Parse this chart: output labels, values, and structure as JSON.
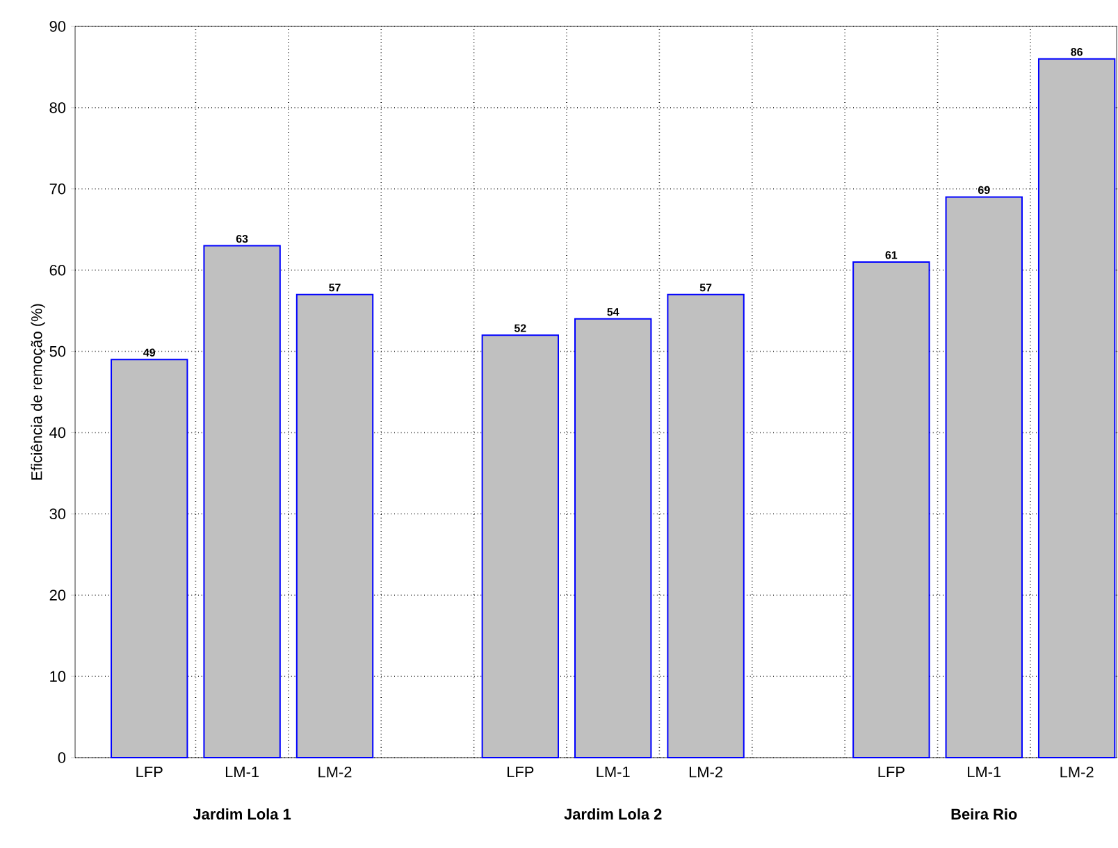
{
  "chart_data": {
    "type": "bar",
    "ylabel": "Eficiência de remoção (%)",
    "categories": [
      "LFP",
      "LM-1",
      "LM-2",
      null,
      "LFP",
      "LM-1",
      "LM-2",
      null,
      "LFP",
      "LM-1",
      "LM-2"
    ],
    "values": [
      49,
      63,
      57,
      null,
      52,
      54,
      57,
      null,
      61,
      69,
      86
    ],
    "color": "#c0c0c0",
    "ylim": [
      0,
      90
    ],
    "yticks": [
      0,
      10,
      20,
      30,
      40,
      50,
      60,
      70,
      80,
      90
    ],
    "grid": true,
    "data_labels": true,
    "annotations": [
      "Jardim Lola 1",
      "Jardim Lola 2",
      "Beira Rio"
    ]
  }
}
